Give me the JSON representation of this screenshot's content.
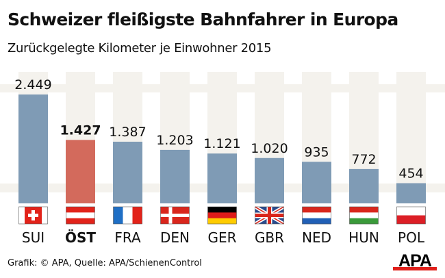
{
  "chart_data": {
    "type": "bar",
    "title": "Schweizer fleißigste Bahnfahrer in Europa",
    "subtitle": "Zurückgelegte Kilometer je Einwohner 2015",
    "categories": [
      "SUI",
      "ÖST",
      "FRA",
      "DEN",
      "GER",
      "GBR",
      "NED",
      "HUN",
      "POL"
    ],
    "values": [
      2449,
      1427,
      1387,
      1203,
      1121,
      1020,
      935,
      772,
      454
    ],
    "value_labels": [
      "2.449",
      "1.427",
      "1.387",
      "1.203",
      "1.121",
      "1.020",
      "935",
      "772",
      "454"
    ],
    "highlight": "ÖST",
    "ylim": [
      0,
      2449
    ],
    "grid": false,
    "legend": "none",
    "flags": [
      "switzerland-flag-icon",
      "austria-flag-icon",
      "france-flag-icon",
      "denmark-flag-icon",
      "germany-flag-icon",
      "uk-flag-icon",
      "netherlands-flag-icon",
      "hungary-flag-icon",
      "poland-flag-icon"
    ],
    "colors": {
      "bar": "#7f9bb5",
      "highlight": "#d36a5c",
      "fence": "#f4f2ed"
    }
  },
  "footer": "Grafik: © APA, Quelle: APA/SchienenControl",
  "logo": "APA"
}
